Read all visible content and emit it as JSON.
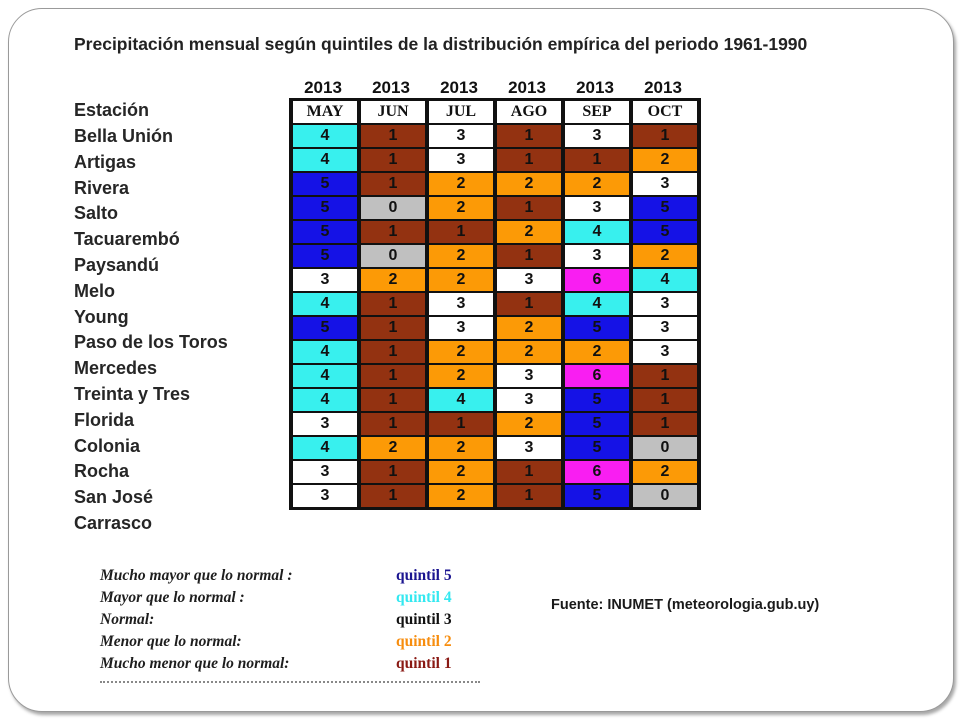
{
  "title": "Precipitación mensual según quintiles de la distribución empírica del periodo 1961-1990",
  "station_header": "Estación",
  "years": [
    "2013",
    "2013",
    "2013",
    "2013",
    "2013",
    "2013"
  ],
  "months": [
    "MAY",
    "JUN",
    "JUL",
    "AGO",
    "SEP",
    "OCT"
  ],
  "quintile_colors": {
    "0": "#c0c0c0",
    "1": "#933211",
    "2": "#fc9a06",
    "3": "#ffffff",
    "4": "#38f0ee",
    "5": "#1512e6",
    "6": "#f91ef2"
  },
  "rows": [
    {
      "station": "Bella Unión",
      "values": [
        "4",
        "1",
        "3",
        "1",
        "3",
        "1"
      ]
    },
    {
      "station": "Artigas",
      "values": [
        "4",
        "1",
        "3",
        "1",
        "1",
        "2"
      ]
    },
    {
      "station": "Rivera",
      "values": [
        "5",
        "1",
        "2",
        "2",
        "2",
        "3"
      ]
    },
    {
      "station": "Salto",
      "values": [
        "5",
        "0",
        "2",
        "1",
        "3",
        "5"
      ]
    },
    {
      "station": "Tacuarembó",
      "values": [
        "5",
        "1",
        "1",
        "2",
        "4",
        "5"
      ]
    },
    {
      "station": "Paysandú",
      "values": [
        "5",
        "0",
        "2",
        "1",
        "3",
        "2"
      ]
    },
    {
      "station": "Melo",
      "values": [
        "3",
        "2",
        "2",
        "3",
        "6",
        "4"
      ]
    },
    {
      "station": "Young",
      "values": [
        "4",
        "1",
        "3",
        "1",
        "4",
        "3"
      ]
    },
    {
      "station": "Paso de los Toros",
      "values": [
        "5",
        "1",
        "3",
        "2",
        "5",
        "3"
      ]
    },
    {
      "station": "Mercedes",
      "values": [
        "4",
        "1",
        "2",
        "2",
        "2",
        "3"
      ]
    },
    {
      "station": "Treinta y Tres",
      "values": [
        "4",
        "1",
        "2",
        "3",
        "6",
        "1"
      ]
    },
    {
      "station": "Florida",
      "values": [
        "4",
        "1",
        "4",
        "3",
        "5",
        "1"
      ]
    },
    {
      "station": "Colonia",
      "values": [
        "3",
        "1",
        "1",
        "2",
        "5",
        "1"
      ]
    },
    {
      "station": "Rocha",
      "values": [
        "4",
        "2",
        "2",
        "3",
        "5",
        "0"
      ]
    },
    {
      "station": "San José",
      "values": [
        "3",
        "1",
        "2",
        "1",
        "6",
        "2"
      ]
    },
    {
      "station": "Carrasco",
      "values": [
        "3",
        "1",
        "2",
        "1",
        "5",
        "0"
      ]
    }
  ],
  "legend": [
    {
      "description": "Mucho mayor que lo normal :",
      "quintile": "quintil 5",
      "color": "#1b1590"
    },
    {
      "description": "Mayor que lo normal :",
      "quintile": "quintil 4",
      "color": "#33e8f0"
    },
    {
      "description": "Normal:",
      "quintile": "quintil 3",
      "color": "#111111"
    },
    {
      "description": "Menor que lo normal:",
      "quintile": "quintil 2",
      "color": "#f78d0e"
    },
    {
      "description": "Mucho menor que lo normal:",
      "quintile": "quintil 1",
      "color": "#8a1a14"
    }
  ],
  "source": "Fuente: INUMET (meteorologia.gub.uy)"
}
